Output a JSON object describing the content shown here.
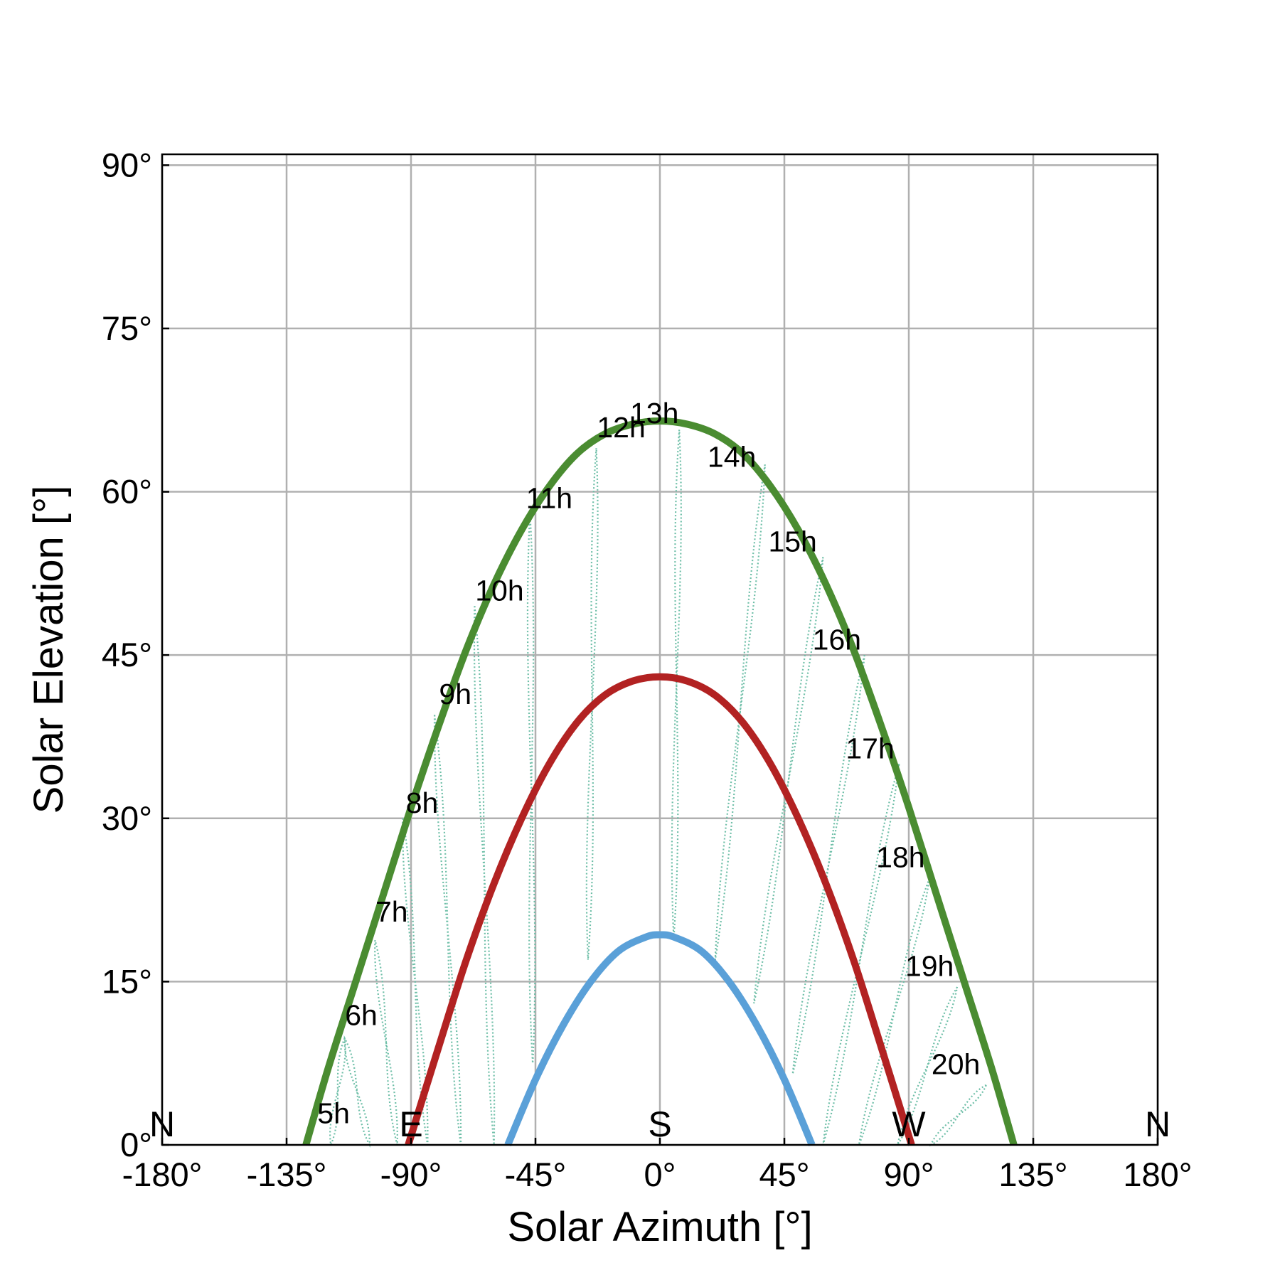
{
  "chart_data": {
    "type": "line",
    "title": "",
    "xlabel": "Solar Azimuth [°]",
    "ylabel": "Solar Elevation [°]",
    "xlim": [
      -180,
      180
    ],
    "ylim": [
      0,
      91
    ],
    "grid": true,
    "xticks": [
      -180,
      -135,
      -90,
      -45,
      0,
      45,
      90,
      135,
      180
    ],
    "xtick_labels": [
      "-180°",
      "-135°",
      "-90°",
      "-45°",
      "0°",
      "45°",
      "90°",
      "135°",
      "180°"
    ],
    "yticks": [
      0,
      15,
      30,
      45,
      60,
      75,
      90
    ],
    "ytick_labels": [
      "0°",
      "15°",
      "30°",
      "45°",
      "60°",
      "75°",
      "90°"
    ],
    "compass_labels": [
      {
        "text": "N",
        "azimuth": -180
      },
      {
        "text": "E",
        "azimuth": -90
      },
      {
        "text": "S",
        "azimuth": 0
      },
      {
        "text": "W",
        "azimuth": 90
      },
      {
        "text": "N",
        "azimuth": 180
      }
    ],
    "series": [
      {
        "color": "#4a8c31",
        "x": [
          -128,
          -120,
          -110,
          -100,
          -90,
          -80,
          -70,
          -60,
          -50,
          -40,
          -30,
          -20,
          -10,
          0,
          10,
          20,
          30,
          40,
          50,
          60,
          70,
          80,
          90,
          100,
          110,
          120,
          128
        ],
        "y": [
          0,
          7,
          15,
          23,
          31,
          38.5,
          45.5,
          51.5,
          56.5,
          60.5,
          63.5,
          65.3,
          66.2,
          66.5,
          66.2,
          65.3,
          63.5,
          60.5,
          56.5,
          51.5,
          45.5,
          38.5,
          31,
          23,
          15,
          7,
          0
        ]
      },
      {
        "color": "#b22222",
        "x": [
          -91,
          -80,
          -70,
          -60,
          -50,
          -40,
          -30,
          -20,
          -10,
          0,
          10,
          20,
          30,
          40,
          50,
          60,
          70,
          80,
          91
        ],
        "y": [
          0,
          9,
          17,
          24,
          30,
          35,
          38.8,
          41.3,
          42.6,
          43,
          42.6,
          41.3,
          38.8,
          35,
          30,
          24,
          17,
          9,
          0
        ]
      },
      {
        "color": "#5aa0d8",
        "x": [
          -55,
          -45,
          -35,
          -25,
          -15,
          -5,
          0,
          5,
          15,
          25,
          35,
          45,
          55
        ],
        "y": [
          0,
          6,
          11,
          15,
          17.8,
          19.1,
          19.3,
          19.1,
          17.8,
          15,
          11,
          6,
          0
        ]
      }
    ],
    "analemma_color": "#6fbfa8",
    "analemmas": [
      {
        "hour": "5h",
        "top": [
          -114,
          9.8
        ],
        "bottom": [
          -119,
          0
        ],
        "label_pos": [
          -118,
          2
        ]
      },
      {
        "hour": "6h",
        "top": [
          -114,
          9.8
        ],
        "bottom": [
          -105,
          0
        ],
        "label_pos": [
          -108,
          11
        ]
      },
      {
        "hour": "7h",
        "top": [
          -103,
          18.8
        ],
        "bottom": [
          -95,
          0
        ],
        "label_pos": [
          -97,
          20.5
        ]
      },
      {
        "hour": "8h",
        "top": [
          -93,
          30
        ],
        "bottom": [
          -84,
          0
        ],
        "label_pos": [
          -86,
          30.5
        ]
      },
      {
        "hour": "9h",
        "top": [
          -81.5,
          39.5
        ],
        "bottom": [
          -72,
          0
        ],
        "label_pos": [
          -74,
          40.5
        ]
      },
      {
        "hour": "10h",
        "top": [
          -67,
          49.5
        ],
        "bottom": [
          -60,
          0
        ],
        "label_pos": [
          -58,
          50
        ]
      },
      {
        "hour": "11h",
        "top": [
          -47,
          58
        ],
        "bottom": [
          -46,
          7.5
        ],
        "label_pos": [
          -40,
          58.5
        ]
      },
      {
        "hour": "12h",
        "top": [
          -23,
          64
        ],
        "bottom": [
          -26,
          17
        ],
        "label_pos": [
          -14,
          65
        ]
      },
      {
        "hour": "13h",
        "top": [
          7,
          65.7
        ],
        "bottom": [
          5,
          19
        ],
        "label_pos": [
          -2,
          66.3
        ]
      },
      {
        "hour": "14h",
        "top": [
          38,
          62.5
        ],
        "bottom": [
          20,
          17
        ],
        "label_pos": [
          26,
          62.3
        ]
      },
      {
        "hour": "15h",
        "top": [
          59,
          54
        ],
        "bottom": [
          34,
          13
        ],
        "label_pos": [
          48,
          54.5
        ]
      },
      {
        "hour": "16h",
        "top": [
          74,
          45
        ],
        "bottom": [
          48,
          6.5
        ],
        "label_pos": [
          64,
          45.5
        ]
      },
      {
        "hour": "17h",
        "top": [
          86.5,
          35
        ],
        "bottom": [
          59,
          0
        ],
        "label_pos": [
          76,
          35.5
        ]
      },
      {
        "hour": "18h",
        "top": [
          97.5,
          24.5
        ],
        "bottom": [
          72,
          0
        ],
        "label_pos": [
          87,
          25.5
        ]
      },
      {
        "hour": "19h",
        "top": [
          107.5,
          14.5
        ],
        "bottom": [
          86,
          0
        ],
        "label_pos": [
          97.5,
          15.5
        ]
      },
      {
        "hour": "20h",
        "top": [
          118,
          5.5
        ],
        "bottom": [
          98,
          0
        ],
        "label_pos": [
          107,
          6.5
        ]
      }
    ]
  }
}
